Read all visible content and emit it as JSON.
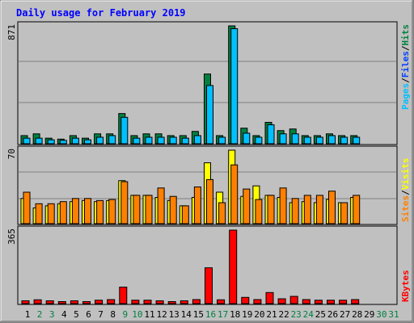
{
  "chart_data": [
    {
      "type": "bar",
      "title": "Daily usage for February 2019",
      "categories": [
        "1",
        "2",
        "3",
        "4",
        "5",
        "6",
        "7",
        "8",
        "9",
        "10",
        "11",
        "12",
        "13",
        "14",
        "15",
        "16",
        "17",
        "18",
        "19",
        "20",
        "21",
        "22",
        "23",
        "24",
        "25",
        "26",
        "27",
        "28",
        "29",
        "30",
        "31"
      ],
      "weekend_days": [
        "2",
        "3",
        "9",
        "10",
        "16",
        "17",
        "23",
        "24",
        "30",
        "31"
      ],
      "ymax_label": "871",
      "ylim": [
        0,
        871
      ],
      "legend": [
        "Pages",
        "Files",
        "Hits"
      ],
      "series": [
        {
          "name": "Hits",
          "color": "#008040",
          "values": [
            60,
            73,
            41,
            34,
            60,
            41,
            73,
            73,
            223,
            60,
            73,
            73,
            60,
            60,
            91,
            515,
            60,
            871,
            115,
            60,
            158,
            97,
            109,
            60,
            60,
            73,
            60,
            60,
            0,
            0,
            0
          ]
        },
        {
          "name": "Files",
          "color": "#00c0ff",
          "values": [
            41,
            41,
            29,
            25,
            41,
            29,
            48,
            60,
            195,
            41,
            48,
            48,
            48,
            41,
            60,
            430,
            48,
            850,
            78,
            48,
            140,
            73,
            73,
            48,
            48,
            60,
            48,
            48,
            0,
            0,
            0
          ]
        }
      ]
    },
    {
      "type": "bar",
      "ymax_label": "70",
      "ylim": [
        0,
        70
      ],
      "legend": [
        "Sites",
        "Visits"
      ],
      "series": [
        {
          "name": "Visits",
          "color": "#ffff00",
          "values": [
            24,
            15,
            17,
            19,
            21,
            22,
            21,
            22,
            41,
            27,
            27,
            25,
            22,
            17,
            25,
            58,
            30,
            70,
            26,
            36,
            27,
            25,
            20,
            21,
            20,
            23,
            20,
            25,
            0,
            0,
            0
          ]
        },
        {
          "name": "Sites",
          "color": "#ff8000",
          "values": [
            30,
            19,
            19,
            21,
            24,
            24,
            22,
            23,
            40,
            27,
            27,
            34,
            26,
            17,
            35,
            42,
            20,
            56,
            33,
            23,
            27,
            34,
            24,
            27,
            27,
            31,
            20,
            27,
            0,
            0,
            0
          ]
        }
      ]
    },
    {
      "type": "bar",
      "ymax_label": "365",
      "ylim": [
        0,
        365
      ],
      "legend": [
        "KBytes"
      ],
      "series": [
        {
          "name": "KBytes",
          "color": "#ff0000",
          "values": [
            14,
            19,
            14,
            10,
            14,
            10,
            17,
            20,
            82,
            17,
            17,
            14,
            10,
            14,
            20,
            178,
            19,
            365,
            31,
            20,
            55,
            24,
            36,
            20,
            17,
            17,
            17,
            20,
            0,
            0,
            0
          ]
        }
      ]
    }
  ]
}
